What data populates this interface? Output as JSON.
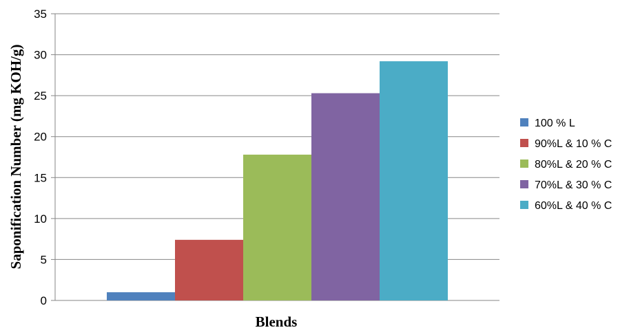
{
  "chart_data": {
    "type": "bar",
    "xlabel": "Blends",
    "ylabel": "Saponification Number  (mg KOH/g)",
    "ylim": [
      0,
      35
    ],
    "yticks": [
      0,
      5,
      10,
      15,
      20,
      25,
      30,
      35
    ],
    "grid": true,
    "legend_position": "right",
    "series": [
      {
        "name": "100 % L",
        "values": [
          1.0
        ],
        "color": "#4F81BD"
      },
      {
        "name": "90%L & 10 % C",
        "values": [
          7.4
        ],
        "color": "#C0504D"
      },
      {
        "name": "80%L & 20 % C",
        "values": [
          17.8
        ],
        "color": "#9BBB59"
      },
      {
        "name": "70%L & 30 % C",
        "values": [
          25.3
        ],
        "color": "#8064A2"
      },
      {
        "name": "60%L & 40 % C",
        "values": [
          29.2
        ],
        "color": "#4BACC6"
      }
    ]
  }
}
